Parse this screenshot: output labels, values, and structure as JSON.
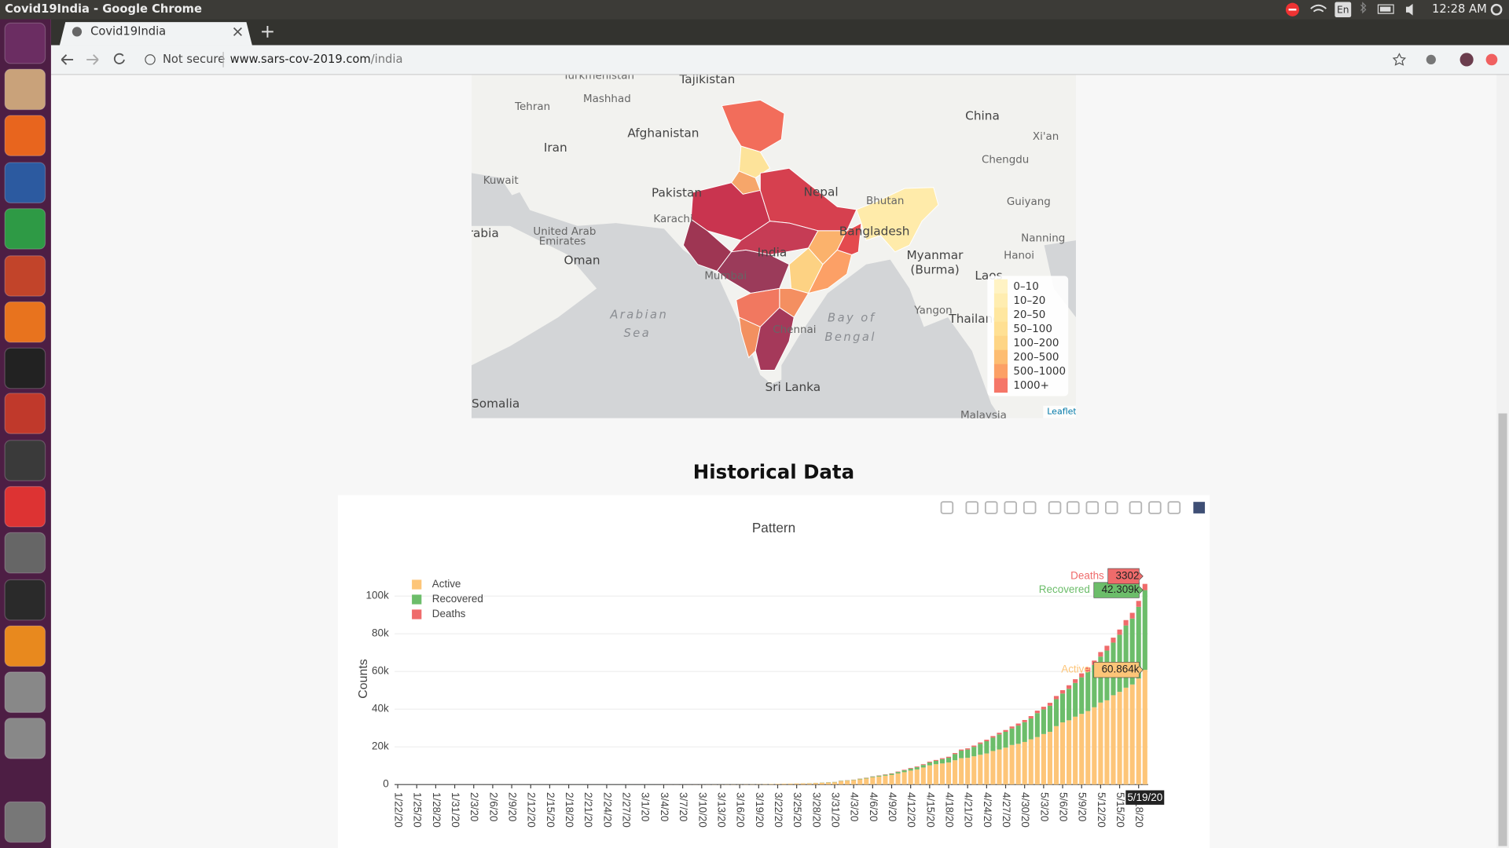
{
  "browser": {
    "window_title": "Covid19India - Google Chrome",
    "tab_title": "Covid19India",
    "security": "Not secure",
    "url_host": "www.sars-cov-2019.com",
    "url_path": "/india",
    "keyboard": "En",
    "clock": "12:28 AM"
  },
  "map": {
    "labels": [
      "Turkmenistan",
      "Tajikistan",
      "Tehran",
      "Mashhad",
      "Afghanistan",
      "Iran",
      "China",
      "Xi'an",
      "Chengdu",
      "Kuwait",
      "Pakistan",
      "Nepal",
      "Guiyang",
      "Karachi",
      "Arabia",
      "United Arab",
      "Emirates",
      "Bangladesh",
      "Nanning",
      "Hanoi",
      "Myanmar",
      "(Burma)",
      "Oman",
      "India",
      "Mumbai",
      "Laos",
      "Arabian",
      "Sea",
      "Bay of",
      "Bengal",
      "Yangon",
      "Thailand",
      "Sri Lanka",
      "Somalia",
      "Malaysia",
      "Bhutan",
      "Chennai"
    ],
    "attribution": "Leaflet",
    "legend": [
      {
        "label": "0–10",
        "color": "#fff3c4"
      },
      {
        "label": "10–20",
        "color": "#ffedb0"
      },
      {
        "label": "20–50",
        "color": "#ffe7a0"
      },
      {
        "label": "50–100",
        "color": "#ffe093"
      },
      {
        "label": "100–200",
        "color": "#fed585"
      },
      {
        "label": "200–500",
        "color": "#fdbd72"
      },
      {
        "label": "500–1000",
        "color": "#fca066"
      },
      {
        "label": "1000+",
        "color": "#f57668"
      }
    ]
  },
  "heading": "Historical Data",
  "chart_data": {
    "type": "bar",
    "stacked": true,
    "title": "Pattern",
    "y_label": "Counts",
    "ylim": [
      0,
      110000
    ],
    "yticks": [
      0,
      {
        "value": 20000,
        "label": "20k"
      },
      {
        "value": 40000,
        "label": "40k"
      },
      {
        "value": 60000,
        "label": "60k"
      },
      {
        "value": 80000,
        "label": "80k"
      },
      {
        "value": 100000,
        "label": "100k"
      }
    ],
    "grid": true,
    "legend": "top-left",
    "categories": [
      "1/22/20",
      null,
      null,
      "1/25/20",
      null,
      null,
      "1/28/20",
      null,
      null,
      "1/31/20",
      null,
      null,
      "2/3/20",
      null,
      null,
      "2/6/20",
      null,
      null,
      "2/9/20",
      null,
      null,
      "2/12/20",
      null,
      null,
      "2/15/20",
      null,
      null,
      "2/18/20",
      null,
      null,
      "2/21/20",
      null,
      null,
      "2/24/20",
      null,
      null,
      "2/27/20",
      null,
      null,
      "3/1/20",
      null,
      null,
      "3/4/20",
      null,
      null,
      "3/7/20",
      null,
      null,
      "3/10/20",
      null,
      null,
      "3/13/20",
      null,
      null,
      "3/16/20",
      null,
      null,
      "3/19/20",
      null,
      null,
      "3/22/20",
      null,
      null,
      "3/25/20",
      null,
      null,
      "3/28/20",
      null,
      null,
      "3/31/20",
      null,
      null,
      "4/3/20",
      null,
      null,
      "4/6/20",
      null,
      null,
      "4/9/20",
      null,
      null,
      "4/12/20",
      null,
      null,
      "4/15/20",
      null,
      null,
      "4/18/20",
      null,
      null,
      "4/21/20",
      null,
      null,
      "4/24/20",
      null,
      null,
      "4/27/20",
      null,
      null,
      "4/30/20",
      null,
      null,
      "5/3/20",
      null,
      null,
      "5/6/20",
      null,
      null,
      "5/9/20",
      null,
      null,
      "5/12/20",
      null,
      null,
      "5/15/20",
      null,
      null,
      "5/18/20",
      "5/19/20"
    ],
    "series": [
      {
        "name": "Active",
        "color": "#fdc578",
        "hover_label": "60.864k",
        "values": [
          0,
          0,
          0,
          0,
          0,
          0,
          0,
          0,
          1,
          1,
          1,
          2,
          3,
          3,
          3,
          3,
          3,
          3,
          3,
          3,
          3,
          3,
          3,
          3,
          3,
          3,
          3,
          3,
          3,
          0,
          0,
          0,
          0,
          0,
          0,
          0,
          0,
          0,
          0,
          0,
          0,
          3,
          25,
          27,
          28,
          31,
          36,
          40,
          53,
          59,
          70,
          71,
          88,
          97,
          100,
          122,
          148,
          171,
          215,
          282,
          339,
          414,
          469,
          551,
          606,
          637,
          806,
          907,
          1072,
          1238,
          1867,
          2069,
          2338,
          2801,
          3219,
          3851,
          4267,
          4724,
          5095,
          5893,
          6575,
          7409,
          8021,
          9059,
          10200,
          10800,
          11200,
          11700,
          12900,
          14000,
          14200,
          15000,
          15800,
          16500,
          17800,
          18600,
          19600,
          21000,
          21600,
          22600,
          24000,
          25200,
          26800,
          28000,
          31000,
          33000,
          34100,
          36000,
          37500,
          39000,
          41000,
          43500,
          44700,
          47400,
          49200,
          51400,
          53100,
          56300,
          60864
        ]
      },
      {
        "name": "Recovered",
        "color": "#6cbd6a",
        "hover_label": "42.309k",
        "values": [
          0,
          0,
          0,
          0,
          0,
          0,
          0,
          0,
          0,
          0,
          0,
          0,
          0,
          0,
          0,
          0,
          0,
          0,
          0,
          0,
          0,
          0,
          0,
          0,
          0,
          0,
          0,
          0,
          0,
          3,
          3,
          3,
          3,
          3,
          3,
          3,
          3,
          3,
          3,
          3,
          3,
          3,
          3,
          3,
          3,
          3,
          3,
          3,
          3,
          3,
          4,
          10,
          10,
          10,
          14,
          14,
          14,
          20,
          23,
          23,
          24,
          34,
          40,
          43,
          50,
          75,
          85,
          102,
          138,
          144,
          156,
          169,
          191,
          274,
          322,
          352,
          411,
          506,
          620,
          774,
          969,
          1080,
          1191,
          1361,
          1515,
          1800,
          2302,
          2546,
          3260,
          3975,
          4370,
          5000,
          5800,
          6500,
          7100,
          8000,
          8400,
          8800,
          9700,
          10500,
          11100,
          12700,
          13100,
          13800,
          14300,
          15300,
          16700,
          17900,
          19400,
          20900,
          22500,
          24400,
          26400,
          27900,
          30300,
          33000,
          35000,
          38000,
          42309
        ]
      },
      {
        "name": "Deaths",
        "color": "#ef6b6b",
        "values": [
          0,
          0,
          0,
          0,
          0,
          0,
          0,
          0,
          0,
          0,
          0,
          0,
          0,
          0,
          0,
          0,
          0,
          0,
          0,
          0,
          0,
          0,
          0,
          0,
          0,
          0,
          0,
          0,
          0,
          0,
          0,
          0,
          0,
          0,
          0,
          0,
          0,
          0,
          0,
          0,
          0,
          0,
          0,
          0,
          0,
          0,
          0,
          0,
          0,
          0,
          1,
          2,
          2,
          2,
          2,
          3,
          3,
          4,
          4,
          4,
          7,
          10,
          10,
          12,
          20,
          20,
          24,
          27,
          32,
          35,
          58,
          72,
          86,
          99,
          118,
          136,
          160,
          178,
          226,
          246,
          288,
          331,
          358,
          393,
          423,
          448,
          486,
          521,
          557,
          603,
          640,
          686,
          723,
          779,
          826,
          881,
          939,
          1008,
          1075,
          1152,
          1223,
          1323,
          1391,
          1566,
          1694,
          1783,
          1889,
          1985,
          2101,
          2212,
          2293,
          2415,
          2549,
          2649,
          2753,
          2872,
          3025,
          3156,
          3302
        ]
      }
    ]
  }
}
